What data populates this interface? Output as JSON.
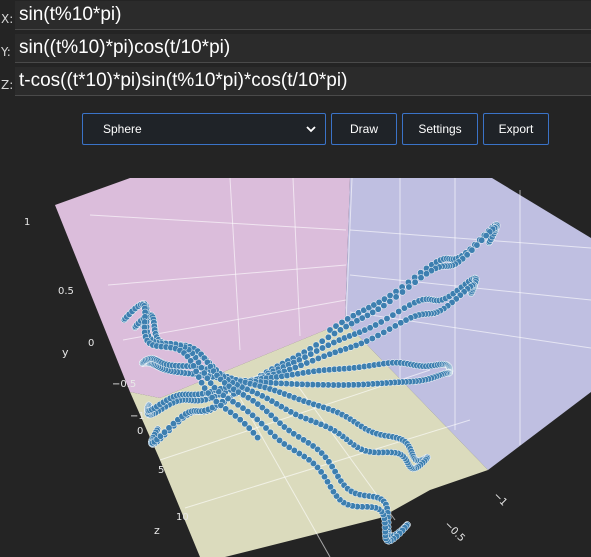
{
  "equations": {
    "x_label": "X:",
    "x_value": "sin(t%10*pi)",
    "y_label": "Y:",
    "y_value": "sin((t%10)*pi)cos(t/10*pi)",
    "z_label": "Z:",
    "z_value": "t-cos((t*10)*pi)sin(t%10*pi)*cos(t/10*pi)"
  },
  "toolbar": {
    "preset_selected": "Sphere",
    "draw_label": "Draw",
    "settings_label": "Settings",
    "export_label": "Export"
  },
  "colors": {
    "background": "#242424",
    "accent": "#3a73c8",
    "marker": "#3d7fb0",
    "pane_y": "#e6c6e6",
    "pane_x": "#c8c8ec",
    "pane_floor": "#e6e6c6"
  },
  "chart_data": {
    "type": "scatter",
    "dimensions": 3,
    "xlabel": "",
    "ylabel": "y",
    "zlabel": "z",
    "y_ticks": [
      "1",
      "0.5",
      "0",
      "−0.5",
      "−1"
    ],
    "z_ticks": [
      "0",
      "5",
      "10"
    ],
    "x_ticks": [
      "−1",
      "−0.5"
    ],
    "grid": true
  }
}
